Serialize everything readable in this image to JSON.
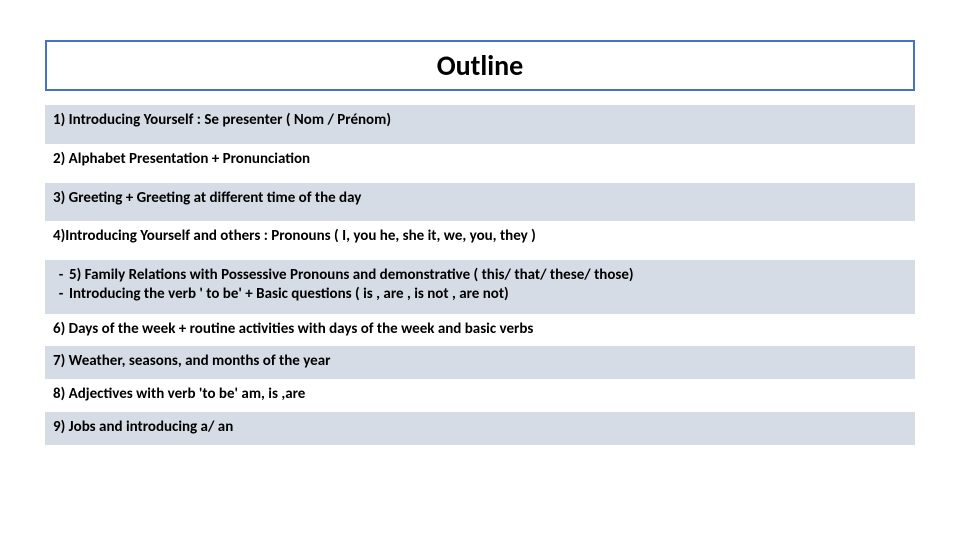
{
  "title": "Outline",
  "colors": {
    "title_border": "#4472c4",
    "row_bg_even": "#d6dce5",
    "row_bg_odd": "#ffffff",
    "text": "#000000"
  },
  "rows": [
    {
      "text": "1)  Introducing Yourself : Se presenter ( Nom /  Prénom)",
      "bg": "#d6dce5"
    },
    {
      "text": " 2) Alphabet Presentation + Pronunciation",
      "bg": "#ffffff"
    },
    {
      "text": "3) Greeting + Greeting at different time of the day",
      "bg": "#d6dce5"
    },
    {
      "text": "4)Introducing Yourself and others :  Pronouns ( I, you he, she it, we, you, they )",
      "bg": "#ffffff"
    },
    {
      "bullets": [
        "5) Family Relations with Possessive Pronouns and demonstrative ( this/ that/ these/ those)",
        "Introducing the verb ' to be' + Basic questions ( is , are , is not , are not)"
      ],
      "bg": "#d6dce5"
    },
    {
      "text": "6) Days of the week + routine activities with days of the week and basic verbs",
      "bg": "#ffffff"
    },
    {
      "text": "7) Weather, seasons, and months of the year",
      "bg": "#d6dce5"
    },
    {
      "text": "8) Adjectives with verb 'to be' am, is ,are",
      "bg": "#ffffff"
    },
    {
      "text": "9) Jobs and introducing a/ an",
      "bg": "#d6dce5"
    }
  ],
  "font": {
    "title_size": 28,
    "row_size": 15,
    "weight": 600
  }
}
